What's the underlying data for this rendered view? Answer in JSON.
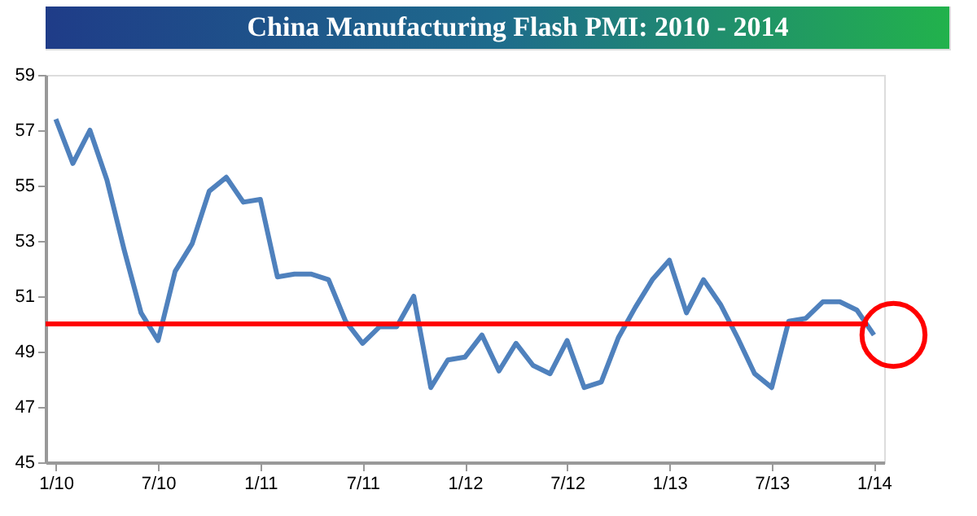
{
  "chart_data": {
    "type": "line",
    "title": "China Manufacturing Flash PMI: 2010 - 2014",
    "categories": [
      "1/10",
      null,
      null,
      null,
      null,
      null,
      "7/10",
      null,
      null,
      null,
      null,
      null,
      "1/11",
      null,
      null,
      null,
      null,
      null,
      "7/11",
      null,
      null,
      null,
      null,
      null,
      "1/12",
      null,
      null,
      null,
      null,
      null,
      "7/12",
      null,
      null,
      null,
      null,
      null,
      "1/13",
      null,
      null,
      null,
      null,
      null,
      "7/13",
      null,
      null,
      null,
      null,
      null,
      "1/14"
    ],
    "series": [
      {
        "color": "#4f81bd",
        "values": [
          57.4,
          55.8,
          57.0,
          55.2,
          52.7,
          50.4,
          49.4,
          51.9,
          52.9,
          54.8,
          55.3,
          54.4,
          54.5,
          51.7,
          51.8,
          51.8,
          51.6,
          50.1,
          49.3,
          49.9,
          49.9,
          51.0,
          47.7,
          48.7,
          48.8,
          49.6,
          48.3,
          49.3,
          48.5,
          48.2,
          49.4,
          47.7,
          47.9,
          49.5,
          50.6,
          51.6,
          52.3,
          50.4,
          51.6,
          50.7,
          49.5,
          48.2,
          47.7,
          50.1,
          50.2,
          50.8,
          50.8,
          50.5,
          49.6
        ]
      }
    ],
    "ylim": [
      45,
      59
    ],
    "yticks": [
      45,
      47,
      49,
      51,
      53,
      55,
      57,
      59
    ],
    "ref_lines": [
      {
        "axis": "y",
        "value": 50,
        "color": "#ff0000"
      }
    ],
    "grid": false,
    "marker": "none",
    "line_style": "solid"
  }
}
